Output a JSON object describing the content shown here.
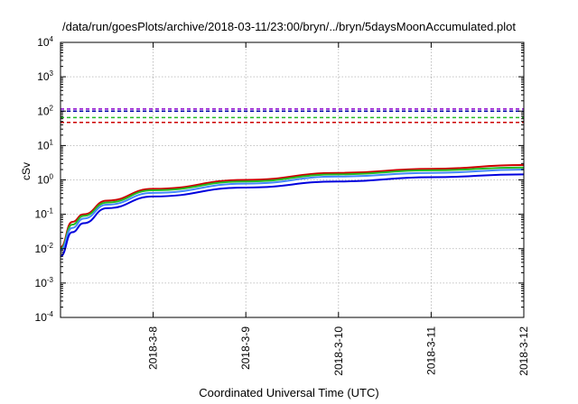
{
  "chart_data": {
    "type": "line",
    "title": "/data/run/goesPlots/archive/2018-03-11/23:00/bryn/../bryn/5daysMoonAccumulated.plot",
    "xlabel": "Coordinated Universal Time (UTC)",
    "ylabel": "cSv",
    "yscale": "log",
    "ylim": [
      0.0001,
      10000
    ],
    "y_ticks": [
      {
        "base": "10",
        "exp": "4",
        "value": 10000
      },
      {
        "base": "10",
        "exp": "3",
        "value": 1000
      },
      {
        "base": "10",
        "exp": "2",
        "value": 100
      },
      {
        "base": "10",
        "exp": "1",
        "value": 10
      },
      {
        "base": "10",
        "exp": "0",
        "value": 1
      },
      {
        "base": "10",
        "exp": "-1",
        "value": 0.1
      },
      {
        "base": "10",
        "exp": "-2",
        "value": 0.01
      },
      {
        "base": "10",
        "exp": "-3",
        "value": 0.001
      },
      {
        "base": "10",
        "exp": "-4",
        "value": 0.0001
      }
    ],
    "xlim": [
      "2018-03-07",
      "2018-03-12"
    ],
    "x_ticks": [
      "2018-3-8",
      "2018-3-9",
      "2018-3-10",
      "2018-3-11",
      "2018-3-12"
    ],
    "grid": true,
    "legend": "none",
    "series": [
      {
        "color": "#cc0000",
        "style": "solid",
        "x": [
          "2018-03-07",
          "2018-03-07T03:00",
          "2018-03-07T06:00",
          "2018-03-07T12:00",
          "2018-03-08",
          "2018-03-09",
          "2018-03-10",
          "2018-03-11",
          "2018-03-12"
        ],
        "values": [
          0.011,
          0.06,
          0.1,
          0.25,
          0.55,
          1.0,
          1.6,
          2.1,
          2.7
        ]
      },
      {
        "color": "#22bb22",
        "style": "solid",
        "x": [
          "2018-03-07",
          "2018-03-07T03:00",
          "2018-03-07T06:00",
          "2018-03-07T12:00",
          "2018-03-08",
          "2018-03-09",
          "2018-03-10",
          "2018-03-11",
          "2018-03-12"
        ],
        "values": [
          0.01,
          0.05,
          0.09,
          0.22,
          0.5,
          0.9,
          1.45,
          1.9,
          2.3
        ]
      },
      {
        "color": "#4488ff",
        "style": "solid",
        "x": [
          "2018-03-07",
          "2018-03-07T03:00",
          "2018-03-07T06:00",
          "2018-03-07T12:00",
          "2018-03-08",
          "2018-03-09",
          "2018-03-10",
          "2018-03-11",
          "2018-03-12"
        ],
        "values": [
          0.009,
          0.04,
          0.075,
          0.19,
          0.42,
          0.78,
          1.25,
          1.6,
          2.0
        ]
      },
      {
        "color": "#0000dd",
        "style": "solid",
        "x": [
          "2018-03-07",
          "2018-03-07T03:00",
          "2018-03-07T06:00",
          "2018-03-07T12:00",
          "2018-03-08",
          "2018-03-09",
          "2018-03-10",
          "2018-03-11",
          "2018-03-12"
        ],
        "values": [
          0.006,
          0.03,
          0.055,
          0.15,
          0.33,
          0.6,
          0.9,
          1.2,
          1.45
        ]
      },
      {
        "color": "#8800cc",
        "style": "dashed",
        "x": [
          "2018-03-07",
          "2018-03-12"
        ],
        "values": [
          115,
          115
        ]
      },
      {
        "color": "#0000aa",
        "style": "dashed",
        "x": [
          "2018-03-07",
          "2018-03-12"
        ],
        "values": [
          100,
          100
        ]
      },
      {
        "color": "#22bb22",
        "style": "dashed",
        "x": [
          "2018-03-07",
          "2018-03-12"
        ],
        "values": [
          65,
          65
        ]
      },
      {
        "color": "#cc0000",
        "style": "dashed",
        "x": [
          "2018-03-07",
          "2018-03-12"
        ],
        "values": [
          47,
          47
        ]
      }
    ]
  }
}
